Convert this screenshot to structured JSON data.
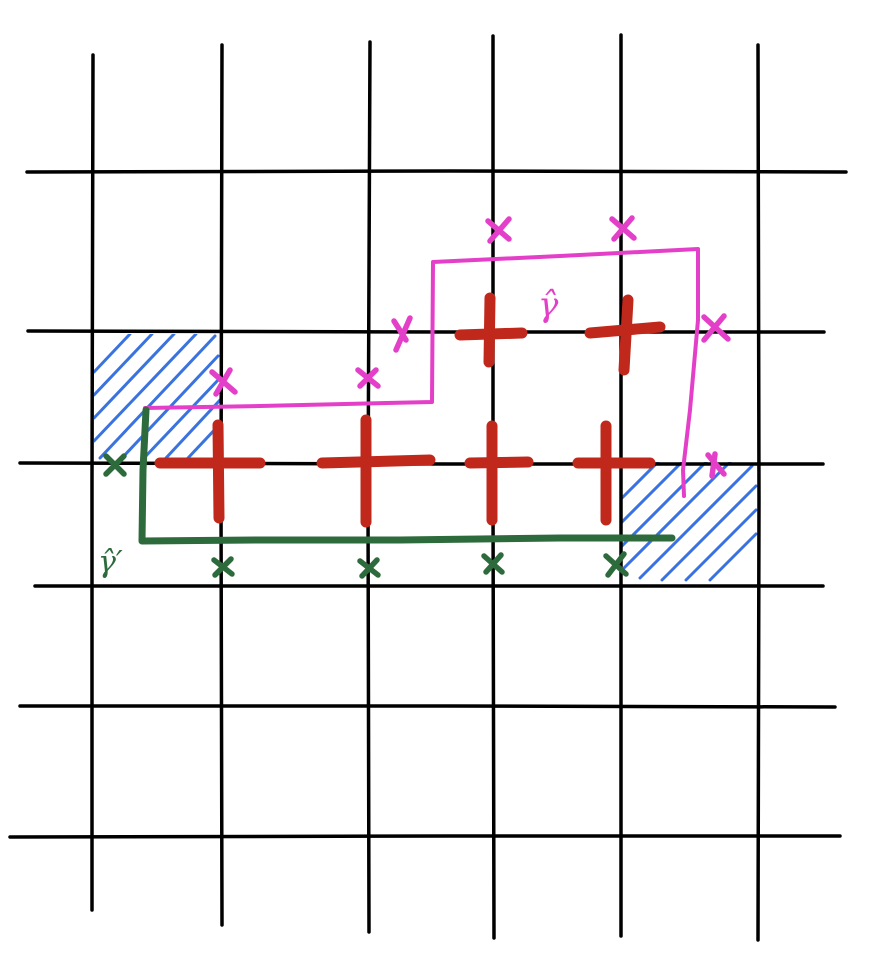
{
  "labels": {
    "pink_path_label": "γ̂",
    "green_path_label": "γ̂′"
  },
  "colors": {
    "grid": "#000000",
    "pink_path": "#e43fc8",
    "green_path": "#2e6b3c",
    "plus_marks": "#c0281c",
    "hatching": "#3a73e0"
  },
  "icons": {
    "plus_mark": "red-plus-icon",
    "cross_mark": "x-icon",
    "hatched_square": "hatch-region"
  }
}
